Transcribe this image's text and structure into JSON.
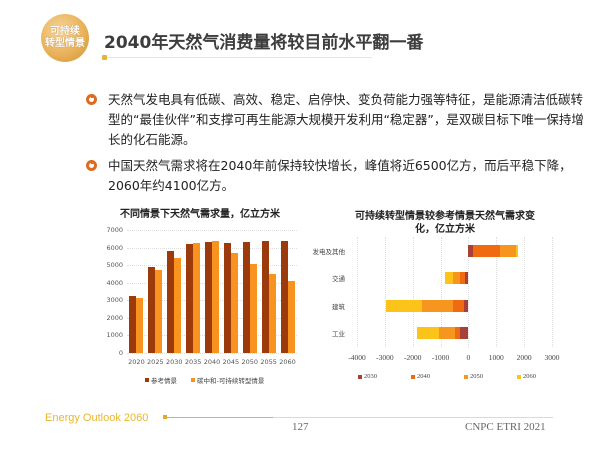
{
  "header": {
    "logo_line1": "可持续",
    "logo_line2": "转型情景",
    "title": "2040年天然气消费量将较目前水平翻一番"
  },
  "bullets": [
    {
      "icon": "power-bullet-icon",
      "text": "天然气发电具有低碳、高效、稳定、启停快、变负荷能力强等特征，是能源清洁低碳转型的“最佳伙伴”和支撑可再生能源大规模开发利用“稳定器”，是双碳目标下唯一保持增长的化石能源。"
    },
    {
      "icon": "power-bullet-icon",
      "text": "中国天然气需求将在2040年前保持较快增长，峰值将近6500亿方，而后平稳下降，2060年约4100亿方。"
    }
  ],
  "footer": {
    "brand": "Energy Outlook 2060",
    "page": "127",
    "org": "CNPC ETRI 2021"
  },
  "colors": {
    "accent_gold": "#e8b72e",
    "bullet_orange": "#e06a1e",
    "series_reference": "#9c3a0c",
    "series_sustainable": "#f7931e",
    "y2030": "#a8403a",
    "y2040": "#ef6a10",
    "y2050": "#f7961e",
    "y2060": "#fcc419"
  },
  "chart_data": [
    {
      "type": "bar",
      "title": "不同情景下天然气需求量，亿立方米",
      "categories": [
        "2020",
        "2025",
        "2030",
        "2035",
        "2040",
        "2045",
        "2050",
        "2055",
        "2060"
      ],
      "series": [
        {
          "name": "参考情景",
          "values": [
            3250,
            4900,
            5800,
            6200,
            6300,
            6280,
            6330,
            6350,
            6350
          ]
        },
        {
          "name": "碳中和-可持续转型情景",
          "values": [
            3150,
            4750,
            5400,
            6250,
            6400,
            5700,
            5050,
            4500,
            4100
          ]
        }
      ],
      "xlabel": "",
      "ylabel": "",
      "yticks": [
        "0",
        "1000",
        "2000",
        "3000",
        "4000",
        "5000",
        "6000",
        "7000"
      ],
      "ylim": [
        0,
        7000
      ],
      "grid": true,
      "legend_position": "bottom"
    },
    {
      "type": "bar",
      "orientation": "horizontal-stacked",
      "title": "可持续转型情景较参考情景天然气需求变化，亿立方米",
      "title_line1": "可持续转型情景较参考情景天然气需求变",
      "title_line2": "化，亿立方米",
      "categories": [
        "发电及其他",
        "交通",
        "建筑",
        "工业"
      ],
      "series": [
        {
          "name": "2030",
          "values": [
            180,
            -130,
            -150,
            -300
          ]
        },
        {
          "name": "2040",
          "values": [
            970,
            -170,
            -400,
            -180
          ]
        },
        {
          "name": "2050",
          "values": [
            550,
            -250,
            -1100,
            -570
          ]
        },
        {
          "name": "2060",
          "values": [
            80,
            -300,
            -1300,
            -800
          ]
        }
      ],
      "totals": [
        1780,
        -850,
        -2950,
        -1850
      ],
      "xticks": [
        "-4000",
        "-3000",
        "-2000",
        "-1000",
        "0",
        "1000",
        "2000",
        "3000"
      ],
      "xlim": [
        -4000,
        3000
      ],
      "grid": true,
      "legend_position": "bottom"
    }
  ]
}
